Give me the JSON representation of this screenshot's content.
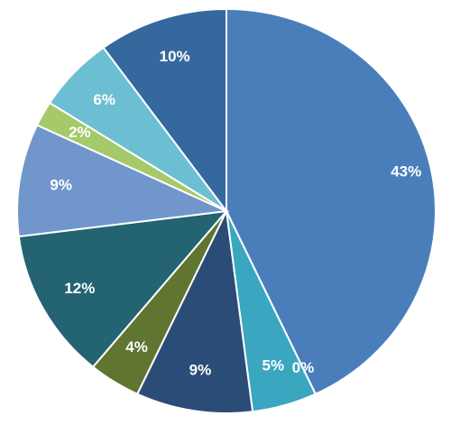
{
  "chart_data": {
    "type": "pie",
    "values": [
      43,
      0,
      5,
      9,
      4,
      12,
      9,
      2,
      6,
      10
    ],
    "value_labels": [
      "43%",
      "0%",
      "5%",
      "9%",
      "4%",
      "12%",
      "9%",
      "2%",
      "6%",
      "10%"
    ],
    "colors": [
      "#4a7ebb",
      "#3fa3bd",
      "#3aa6c0",
      "#2b4c76",
      "#5f7530",
      "#246371",
      "#7196cc",
      "#a6c96a",
      "#6cbfd3",
      "#35689c"
    ]
  }
}
